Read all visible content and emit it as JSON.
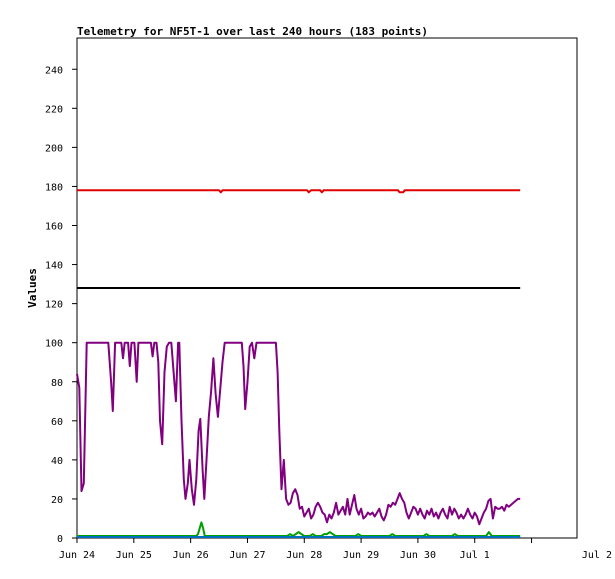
{
  "chart_data": {
    "type": "line",
    "title": "Telemetry for NF5T-1 over last 240 hours (183 points)",
    "ylabel": "Values",
    "xlabel": "",
    "ylim": [
      0,
      256
    ],
    "xlim": [
      0,
      8.8
    ],
    "y_ticks": [
      0,
      20,
      40,
      60,
      80,
      100,
      120,
      140,
      160,
      180,
      200,
      220,
      240
    ],
    "x_ticks": [
      {
        "x": 0,
        "label": "Jun 24"
      },
      {
        "x": 1,
        "label": "Jun 25"
      },
      {
        "x": 2,
        "label": "Jun 26"
      },
      {
        "x": 3,
        "label": "Jun 27"
      },
      {
        "x": 4,
        "label": "Jun 28"
      },
      {
        "x": 5,
        "label": "Jun 29"
      },
      {
        "x": 6,
        "label": "Jun 30"
      },
      {
        "x": 7,
        "label": "Jul 1"
      },
      {
        "x": 8,
        "label": "Jul 2"
      }
    ],
    "grid": false,
    "series": [
      {
        "color": "#e00000",
        "points": [
          [
            0,
            178
          ],
          [
            2.5,
            178
          ],
          [
            2.53,
            177
          ],
          [
            2.56,
            178
          ],
          [
            4.05,
            178
          ],
          [
            4.08,
            177
          ],
          [
            4.12,
            178
          ],
          [
            4.28,
            178
          ],
          [
            4.31,
            177
          ],
          [
            4.34,
            178
          ],
          [
            5.65,
            178
          ],
          [
            5.68,
            177
          ],
          [
            5.74,
            177
          ],
          [
            5.77,
            178
          ],
          [
            7.8,
            178
          ]
        ]
      },
      {
        "color": "#000000",
        "points": [
          [
            0,
            128
          ],
          [
            7.8,
            128
          ]
        ]
      },
      {
        "color": "#800080",
        "points": [
          [
            0,
            84
          ],
          [
            0.04,
            77
          ],
          [
            0.08,
            24
          ],
          [
            0.12,
            28
          ],
          [
            0.17,
            100
          ],
          [
            0.55,
            100
          ],
          [
            0.6,
            80
          ],
          [
            0.63,
            65
          ],
          [
            0.67,
            100
          ],
          [
            0.78,
            100
          ],
          [
            0.81,
            92
          ],
          [
            0.84,
            100
          ],
          [
            0.9,
            100
          ],
          [
            0.93,
            88
          ],
          [
            0.96,
            100
          ],
          [
            1.01,
            100
          ],
          [
            1.05,
            80
          ],
          [
            1.08,
            100
          ],
          [
            1.3,
            100
          ],
          [
            1.33,
            93
          ],
          [
            1.36,
            100
          ],
          [
            1.4,
            100
          ],
          [
            1.43,
            90
          ],
          [
            1.46,
            60
          ],
          [
            1.5,
            48
          ],
          [
            1.54,
            85
          ],
          [
            1.58,
            98
          ],
          [
            1.62,
            100
          ],
          [
            1.66,
            100
          ],
          [
            1.7,
            85
          ],
          [
            1.74,
            70
          ],
          [
            1.78,
            100
          ],
          [
            1.8,
            100
          ],
          [
            1.84,
            60
          ],
          [
            1.88,
            30
          ],
          [
            1.91,
            20
          ],
          [
            1.95,
            28
          ],
          [
            1.98,
            40
          ],
          [
            2.02,
            25
          ],
          [
            2.06,
            17
          ],
          [
            2.1,
            30
          ],
          [
            2.14,
            55
          ],
          [
            2.17,
            61
          ],
          [
            2.21,
            35
          ],
          [
            2.24,
            20
          ],
          [
            2.28,
            40
          ],
          [
            2.32,
            62
          ],
          [
            2.36,
            75
          ],
          [
            2.4,
            92
          ],
          [
            2.44,
            74
          ],
          [
            2.48,
            62
          ],
          [
            2.52,
            76
          ],
          [
            2.56,
            90
          ],
          [
            2.6,
            100
          ],
          [
            2.9,
            100
          ],
          [
            2.93,
            88
          ],
          [
            2.96,
            66
          ],
          [
            3,
            80
          ],
          [
            3.04,
            98
          ],
          [
            3.08,
            100
          ],
          [
            3.12,
            92
          ],
          [
            3.16,
            100
          ],
          [
            3.5,
            100
          ],
          [
            3.53,
            85
          ],
          [
            3.56,
            55
          ],
          [
            3.6,
            25
          ],
          [
            3.64,
            40
          ],
          [
            3.68,
            20
          ],
          [
            3.72,
            17
          ],
          [
            3.76,
            18
          ],
          [
            3.8,
            23
          ],
          [
            3.84,
            25
          ],
          [
            3.88,
            22
          ],
          [
            3.92,
            15
          ],
          [
            3.96,
            16
          ],
          [
            4,
            11
          ],
          [
            4.04,
            13
          ],
          [
            4.08,
            15
          ],
          [
            4.12,
            10
          ],
          [
            4.16,
            12
          ],
          [
            4.2,
            16
          ],
          [
            4.24,
            18
          ],
          [
            4.28,
            16
          ],
          [
            4.32,
            13
          ],
          [
            4.36,
            12
          ],
          [
            4.4,
            8
          ],
          [
            4.44,
            12
          ],
          [
            4.48,
            10
          ],
          [
            4.52,
            13
          ],
          [
            4.56,
            18
          ],
          [
            4.6,
            12
          ],
          [
            4.64,
            14
          ],
          [
            4.68,
            16
          ],
          [
            4.72,
            12
          ],
          [
            4.76,
            20
          ],
          [
            4.8,
            12
          ],
          [
            4.84,
            17
          ],
          [
            4.88,
            22
          ],
          [
            4.92,
            15
          ],
          [
            4.96,
            12
          ],
          [
            5,
            15
          ],
          [
            5.04,
            10
          ],
          [
            5.08,
            11
          ],
          [
            5.12,
            13
          ],
          [
            5.16,
            12
          ],
          [
            5.2,
            13
          ],
          [
            5.24,
            11
          ],
          [
            5.28,
            13
          ],
          [
            5.32,
            15
          ],
          [
            5.36,
            11
          ],
          [
            5.4,
            9
          ],
          [
            5.44,
            12
          ],
          [
            5.48,
            17
          ],
          [
            5.52,
            16
          ],
          [
            5.56,
            18
          ],
          [
            5.6,
            17
          ],
          [
            5.64,
            20
          ],
          [
            5.68,
            23
          ],
          [
            5.72,
            20
          ],
          [
            5.76,
            18
          ],
          [
            5.8,
            13
          ],
          [
            5.84,
            10
          ],
          [
            5.88,
            13
          ],
          [
            5.92,
            16
          ],
          [
            5.96,
            15
          ],
          [
            6,
            12
          ],
          [
            6.04,
            15
          ],
          [
            6.08,
            12
          ],
          [
            6.12,
            10
          ],
          [
            6.16,
            14
          ],
          [
            6.2,
            12
          ],
          [
            6.24,
            15
          ],
          [
            6.28,
            11
          ],
          [
            6.32,
            13
          ],
          [
            6.36,
            10
          ],
          [
            6.4,
            13
          ],
          [
            6.44,
            15
          ],
          [
            6.48,
            12
          ],
          [
            6.52,
            10
          ],
          [
            6.56,
            16
          ],
          [
            6.6,
            12
          ],
          [
            6.64,
            15
          ],
          [
            6.68,
            13
          ],
          [
            6.72,
            10
          ],
          [
            6.76,
            12
          ],
          [
            6.8,
            10
          ],
          [
            6.84,
            12
          ],
          [
            6.88,
            15
          ],
          [
            6.92,
            12
          ],
          [
            6.96,
            10
          ],
          [
            7,
            13
          ],
          [
            7.04,
            11
          ],
          [
            7.08,
            7
          ],
          [
            7.12,
            10
          ],
          [
            7.16,
            13
          ],
          [
            7.2,
            15
          ],
          [
            7.24,
            19
          ],
          [
            7.28,
            20
          ],
          [
            7.32,
            10
          ],
          [
            7.36,
            16
          ],
          [
            7.4,
            15
          ],
          [
            7.44,
            15
          ],
          [
            7.48,
            16
          ],
          [
            7.52,
            14
          ],
          [
            7.56,
            17
          ],
          [
            7.6,
            16
          ],
          [
            7.64,
            17
          ],
          [
            7.68,
            18
          ],
          [
            7.72,
            19
          ],
          [
            7.76,
            20
          ],
          [
            7.8,
            20
          ]
        ]
      },
      {
        "color": "#00a000",
        "points": [
          [
            0,
            1
          ],
          [
            2.1,
            1
          ],
          [
            2.13,
            2
          ],
          [
            2.16,
            5
          ],
          [
            2.19,
            8
          ],
          [
            2.22,
            5
          ],
          [
            2.25,
            1
          ],
          [
            3.7,
            1
          ],
          [
            3.75,
            2
          ],
          [
            3.8,
            1
          ],
          [
            3.85,
            2
          ],
          [
            3.9,
            3
          ],
          [
            3.95,
            2
          ],
          [
            4,
            1
          ],
          [
            4.1,
            1
          ],
          [
            4.15,
            2
          ],
          [
            4.2,
            1
          ],
          [
            4.3,
            1
          ],
          [
            4.35,
            2
          ],
          [
            4.4,
            2
          ],
          [
            4.45,
            3
          ],
          [
            4.5,
            2
          ],
          [
            4.55,
            1
          ],
          [
            4.9,
            1
          ],
          [
            4.95,
            2
          ],
          [
            5,
            1
          ],
          [
            5.5,
            1
          ],
          [
            5.55,
            2
          ],
          [
            5.6,
            1
          ],
          [
            6.1,
            1
          ],
          [
            6.15,
            2
          ],
          [
            6.2,
            1
          ],
          [
            6.6,
            1
          ],
          [
            6.65,
            2
          ],
          [
            6.7,
            1
          ],
          [
            7.2,
            1
          ],
          [
            7.25,
            3
          ],
          [
            7.3,
            1
          ],
          [
            7.8,
            1
          ]
        ]
      },
      {
        "color": "#0070c0",
        "points": [
          [
            0,
            0.5
          ],
          [
            7.8,
            0.5
          ]
        ]
      }
    ]
  }
}
